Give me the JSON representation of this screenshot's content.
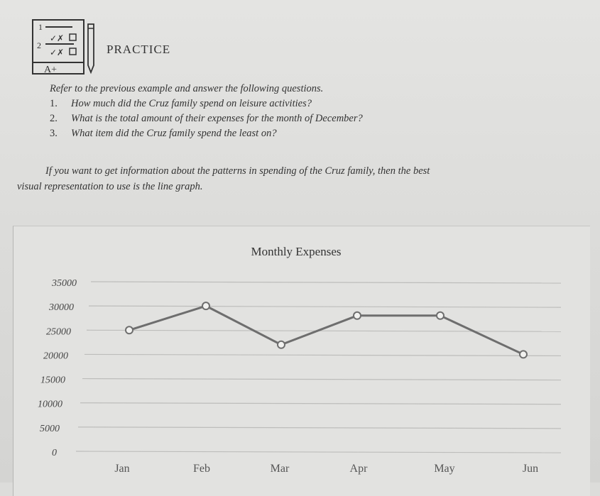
{
  "header": {
    "logo_text": {
      "row1": "1",
      "row2": "2",
      "marks": "✓✗",
      "grade": "A+"
    },
    "practice_label": "PRACTICE"
  },
  "instructions": {
    "intro": "Refer to the previous example and answer the following questions.",
    "questions": [
      {
        "num": "1.",
        "text": "How much did the Cruz family spend on leisure activities?"
      },
      {
        "num": "2.",
        "text": "What is the total amount of their expenses for the month of December?"
      },
      {
        "num": "3.",
        "text": "What item did the Cruz family spend the least on?"
      }
    ]
  },
  "paragraph": {
    "line1": "If you want to get information about the patterns in spending of the Cruz family, then the best",
    "line2": "visual representation to use is the line graph."
  },
  "chart_data": {
    "type": "line",
    "title": "Monthly Expenses",
    "categories": [
      "Jan",
      "Feb",
      "Mar",
      "Apr",
      "May",
      "Jun"
    ],
    "series": [
      {
        "values": [
          25000,
          30000,
          22000,
          28000,
          28000,
          20000
        ]
      }
    ],
    "y_ticks": [
      "35000",
      "30000",
      "25000",
      "20000",
      "15000",
      "10000",
      "5000",
      "0"
    ],
    "ylim": [
      0,
      35000
    ],
    "grid": true,
    "line_color": "#6e6e6e",
    "marker_fill": "#f2f2f0"
  }
}
